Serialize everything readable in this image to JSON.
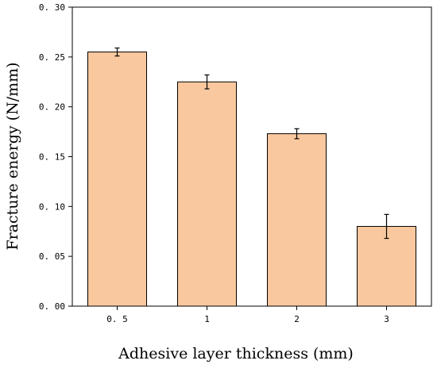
{
  "chart_data": {
    "type": "bar",
    "title": "",
    "xlabel": "Adhesive layer thickness (mm)",
    "ylabel": "Fracture energy (N/mm)",
    "categories": [
      "0.5",
      "1",
      "2",
      "3"
    ],
    "category_tick_labels": [
      "0. 5",
      "1",
      "2",
      "3"
    ],
    "values": [
      0.255,
      0.225,
      0.173,
      0.08
    ],
    "error": [
      0.004,
      0.007,
      0.005,
      0.012
    ],
    "ylim": [
      0,
      0.3
    ],
    "yticks": [
      0.0,
      0.05,
      0.1,
      0.15,
      0.2,
      0.25,
      0.3
    ],
    "ytick_labels": [
      "0. 00",
      "0. 05",
      "0. 10",
      "0. 15",
      "0. 20",
      "0. 25",
      "0. 30"
    ],
    "grid": false,
    "legend": "none",
    "bar_color": "#F9C89E",
    "bar_edge_color": "#000000"
  }
}
